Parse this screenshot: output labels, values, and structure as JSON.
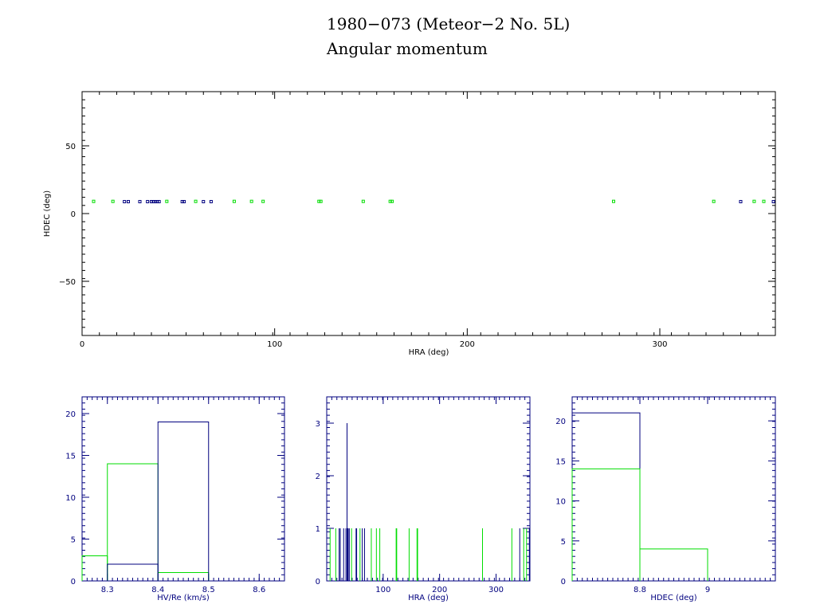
{
  "title": {
    "line1": "1980−073 (Meteor−2 No. 5L)",
    "line2": "Angular momentum"
  },
  "colors": {
    "axes_main": "#000000",
    "axes_hist": "#00007f",
    "series_blue": "#00007f",
    "series_green": "#00dd00"
  },
  "chart_data": [
    {
      "type": "scatter",
      "xlabel": "HRA (deg)",
      "ylabel": "HDEC (deg)",
      "xlim": [
        0,
        360
      ],
      "ylim": [
        -90,
        90
      ],
      "xticks": [
        0,
        100,
        200,
        300
      ],
      "xtick_labels": [
        "0",
        "100",
        "200",
        "300"
      ],
      "yticks": [
        -50,
        0,
        50
      ],
      "ytick_labels": [
        "−50",
        "0",
        "50"
      ],
      "series": [
        {
          "color": "series_blue",
          "points": [
            [
              22,
              8.8
            ],
            [
              24,
              8.8
            ],
            [
              30,
              8.8
            ],
            [
              34,
              8.8
            ],
            [
              36,
              8.8
            ],
            [
              37,
              8.8
            ],
            [
              38,
              8.8
            ],
            [
              39,
              8.8
            ],
            [
              40,
              8.8
            ],
            [
              52,
              8.8
            ],
            [
              53,
              8.8
            ],
            [
              63,
              8.8
            ],
            [
              67,
              8.8
            ],
            [
              342,
              8.8
            ],
            [
              359,
              8.8
            ]
          ]
        },
        {
          "color": "series_green",
          "points": [
            [
              6,
              9.0
            ],
            [
              16,
              9.0
            ],
            [
              44,
              9.0
            ],
            [
              59,
              9.0
            ],
            [
              79,
              9.0
            ],
            [
              88,
              9.0
            ],
            [
              94,
              9.0
            ],
            [
              123,
              9.0
            ],
            [
              124,
              9.0
            ],
            [
              146,
              9.0
            ],
            [
              160,
              9.0
            ],
            [
              161,
              9.0
            ],
            [
              276,
              9.0
            ],
            [
              328,
              9.0
            ],
            [
              349,
              9.0
            ],
            [
              354,
              9.0
            ]
          ]
        }
      ]
    },
    {
      "type": "histogram",
      "xlabel": "HV/Re (km/s)",
      "xlim": [
        8.25,
        8.65
      ],
      "ylim": [
        0,
        22
      ],
      "xticks": [
        8.3,
        8.4,
        8.5,
        8.6
      ],
      "xtick_labels": [
        "8.3",
        "8.4",
        "8.5",
        "8.6"
      ],
      "yticks": [
        0,
        5,
        10,
        15,
        20
      ],
      "ytick_labels": [
        "0",
        "5",
        "10",
        "15",
        "20"
      ],
      "series": [
        {
          "color": "series_green",
          "bins": [
            [
              8.25,
              8.3,
              3
            ],
            [
              8.3,
              8.4,
              14
            ],
            [
              8.4,
              8.5,
              1
            ]
          ]
        },
        {
          "color": "series_blue",
          "bins": [
            [
              8.3,
              8.4,
              2
            ],
            [
              8.4,
              8.5,
              19
            ]
          ]
        }
      ]
    },
    {
      "type": "histogram",
      "xlabel": "HRA (deg)",
      "xlim": [
        0,
        360
      ],
      "ylim": [
        0,
        3.5
      ],
      "xticks": [
        100,
        200,
        300
      ],
      "xtick_labels": [
        "100",
        "200",
        "300"
      ],
      "yticks": [
        0,
        1,
        2,
        3
      ],
      "ytick_labels": [
        "0",
        "1",
        "2",
        "3"
      ],
      "series": [
        {
          "color": "series_green",
          "spikes": [
            [
              6,
              1
            ],
            [
              16,
              1
            ],
            [
              44,
              1
            ],
            [
              59,
              1
            ],
            [
              79,
              1
            ],
            [
              88,
              1
            ],
            [
              94,
              1
            ],
            [
              123,
              1
            ],
            [
              124,
              1
            ],
            [
              146,
              1
            ],
            [
              160,
              1
            ],
            [
              161,
              1
            ],
            [
              276,
              1
            ],
            [
              328,
              1
            ],
            [
              349,
              1
            ],
            [
              354,
              1
            ]
          ]
        },
        {
          "color": "series_blue",
          "spikes": [
            [
              22,
              1
            ],
            [
              24,
              1
            ],
            [
              30,
              1
            ],
            [
              34,
              1
            ],
            [
              36,
              3
            ],
            [
              37,
              1
            ],
            [
              38,
              1
            ],
            [
              40,
              1
            ],
            [
              52,
              1
            ],
            [
              53,
              1
            ],
            [
              63,
              1
            ],
            [
              67,
              1
            ],
            [
              342,
              1
            ],
            [
              359,
              1
            ]
          ]
        }
      ]
    },
    {
      "type": "histogram",
      "xlabel": "HDEC (deg)",
      "xlim": [
        8.6,
        9.2
      ],
      "ylim": [
        0,
        23
      ],
      "xticks": [
        8.8,
        9.0
      ],
      "xtick_labels": [
        "8.8",
        "9"
      ],
      "yticks": [
        0,
        5,
        10,
        15,
        20
      ],
      "ytick_labels": [
        "0",
        "5",
        "10",
        "15",
        "20"
      ],
      "series": [
        {
          "color": "series_blue",
          "bins": [
            [
              8.6,
              8.8,
              21
            ]
          ]
        },
        {
          "color": "series_green",
          "bins": [
            [
              8.6,
              8.8,
              14
            ],
            [
              8.8,
              9.0,
              4
            ]
          ]
        }
      ]
    }
  ]
}
